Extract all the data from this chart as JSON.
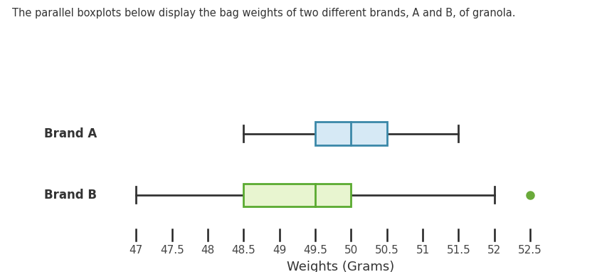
{
  "title_text": "The parallel boxplots below display the bag weights of two different brands, A and B, of granola.",
  "xlabel": "Weights (Grams)",
  "brands": [
    "Brand A",
    "Brand B"
  ],
  "brand_A": {
    "whisker_low": 48.5,
    "Q1": 49.5,
    "median": 50.0,
    "Q3": 50.5,
    "whisker_high": 51.5,
    "outliers": [],
    "box_facecolor": "#d6e9f5",
    "box_edgecolor": "#3a88a8",
    "line_color": "#3a88a8"
  },
  "brand_B": {
    "whisker_low": 47.0,
    "Q1": 48.5,
    "median": 49.5,
    "Q3": 50.0,
    "whisker_high": 52.0,
    "outliers": [
      52.5
    ],
    "box_facecolor": "#e8f5d0",
    "box_edgecolor": "#5aaa30",
    "line_color": "#5aaa30",
    "outlier_color": "#6aaa3a"
  },
  "xmin": 46.6,
  "xmax": 53.1,
  "xticks": [
    47,
    47.5,
    48,
    48.5,
    49,
    49.5,
    50,
    50.5,
    51,
    51.5,
    52,
    52.5
  ],
  "axis_arrow_color": "#222222",
  "background_color": "#ffffff",
  "title_fontsize": 10.5,
  "label_fontsize": 13,
  "tick_fontsize": 11,
  "brand_label_fontsize": 12
}
